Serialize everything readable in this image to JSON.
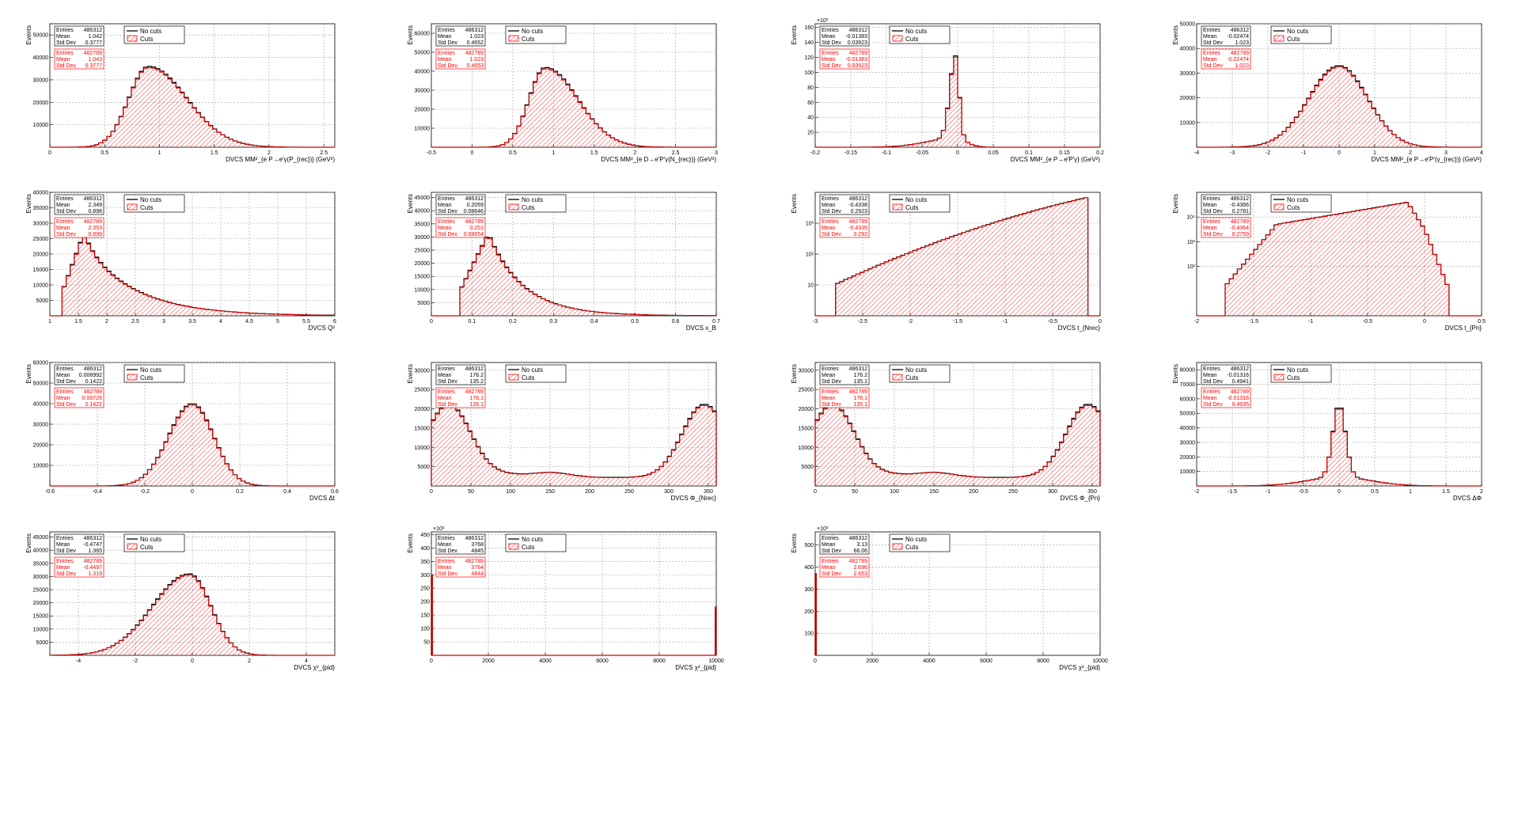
{
  "legend": {
    "nocuts": "No cuts",
    "cuts": "Cuts"
  },
  "stat_labels": [
    "Entries",
    "Mean",
    "Std Dev"
  ],
  "colors": {
    "nocuts": "#000000",
    "cuts": "#ff0000",
    "grid": "#a0a0a0"
  },
  "chart_data": [
    {
      "type": "histogram",
      "xlabel": "DVCS MM²_{e P→e′γ(P_{rec})} (GeV²)",
      "ylabel": "Events",
      "xlim": [
        0,
        2.6
      ],
      "ylim": [
        0,
        55000
      ],
      "log": false,
      "xticks": [
        "0",
        "0.5",
        "1",
        "1.5",
        "2",
        "2.5"
      ],
      "yticks": [
        "10000",
        "20000",
        "30000",
        "40000",
        "50000"
      ],
      "stats_nocuts": {
        "entries": "486312",
        "mean": "1.042",
        "std": "0.3777"
      },
      "stats_cuts": {
        "entries": "482789",
        "mean": "1.043",
        "std": "0.3777"
      },
      "shape": {
        "kind": "skew",
        "mu": 0.9,
        "sigL": 0.18,
        "sigR": 0.35,
        "peak": 36000,
        "base": 0
      }
    },
    {
      "type": "histogram",
      "xlabel": "DVCS MM²_{e D→e′P′γ(N_{rec})} (GeV²)",
      "ylabel": "Events",
      "xlim": [
        -0.5,
        3
      ],
      "ylim": [
        0,
        65000
      ],
      "log": false,
      "xticks": [
        "-0.5",
        "0",
        "0.5",
        "1",
        "1.5",
        "2",
        "2.5",
        "3"
      ],
      "yticks": [
        "10000",
        "20000",
        "30000",
        "40000",
        "50000",
        "60000"
      ],
      "stats_nocuts": {
        "entries": "486312",
        "mean": "1.023",
        "std": "0.4652"
      },
      "stats_cuts": {
        "entries": "482789",
        "mean": "1.023",
        "std": "0.4653"
      },
      "shape": {
        "kind": "skew",
        "mu": 0.9,
        "sigL": 0.2,
        "sigR": 0.4,
        "peak": 42000,
        "base": 0
      }
    },
    {
      "type": "histogram",
      "xlabel": "DVCS MM²_{e P→e′P′γ} (GeV²)",
      "ylabel": "Events",
      "xlim": [
        -0.2,
        0.2
      ],
      "ylim": [
        0,
        165000
      ],
      "log": false,
      "yexp": "×10³",
      "xticks": [
        "-0.2",
        "-0.15",
        "-0.1",
        "-0.05",
        "0",
        "0.05",
        "0.1",
        "0.15",
        "0.2"
      ],
      "yticks": [
        "20",
        "40",
        "60",
        "80",
        "100",
        "120",
        "140",
        "160"
      ],
      "stats_nocuts": {
        "entries": "486312",
        "mean": "-0.01383",
        "std": "0.03923"
      },
      "stats_cuts": {
        "entries": "482789",
        "mean": "-0.01383",
        "std": "0.03923"
      },
      "shape": {
        "kind": "sharp",
        "mu": -0.003,
        "sigL": 0.008,
        "sigR": 0.005,
        "peak": 110000,
        "base": 0,
        "tailAmp": 12000,
        "tailSigL": 0.04,
        "tailSigR": 0.015
      }
    },
    {
      "type": "histogram",
      "xlabel": "DVCS MM²_{e P→e′P′(γ_{rec})} (GeV²)",
      "ylabel": "Events",
      "xlim": [
        -4,
        4
      ],
      "ylim": [
        0,
        50000
      ],
      "log": false,
      "xticks": [
        "-4",
        "-3",
        "-2",
        "-1",
        "0",
        "1",
        "2",
        "3",
        "4"
      ],
      "yticks": [
        "10000",
        "20000",
        "30000",
        "40000",
        "50000"
      ],
      "stats_nocuts": {
        "entries": "486312",
        "mean": "-0.02474",
        "std": "1.023"
      },
      "stats_cuts": {
        "entries": "482789",
        "mean": "-0.02474",
        "std": "1.023"
      },
      "shape": {
        "kind": "skew",
        "mu": 0.0,
        "sigL": 0.85,
        "sigR": 0.8,
        "peak": 33000,
        "base": 0
      }
    },
    {
      "type": "histogram",
      "xlabel": "DVCS Q²",
      "ylabel": "Events",
      "xlim": [
        1,
        6
      ],
      "ylim": [
        0,
        40000
      ],
      "log": false,
      "xticks": [
        "1",
        "1.5",
        "2",
        "2.5",
        "3",
        "3.5",
        "4",
        "4.5",
        "5",
        "5.5",
        "6"
      ],
      "yticks": [
        "5000",
        "10000",
        "15000",
        "20000",
        "25000",
        "30000",
        "35000",
        "40000"
      ],
      "stats_nocuts": {
        "entries": "486312",
        "mean": "2.349",
        "std": "0.898"
      },
      "stats_cuts": {
        "entries": "482789",
        "mean": "2.353",
        "std": "0.899"
      },
      "shape": {
        "kind": "onset",
        "start": 1.25,
        "mu": 1.6,
        "sigR": 0.9,
        "peak": 27000
      }
    },
    {
      "type": "histogram",
      "xlabel": "DVCS x_B",
      "ylabel": "Events",
      "xlim": [
        0,
        0.7
      ],
      "ylim": [
        0,
        47000
      ],
      "log": false,
      "xticks": [
        "0",
        "0.1",
        "0.2",
        "0.3",
        "0.4",
        "0.5",
        "0.6",
        "0.7"
      ],
      "yticks": [
        "5000",
        "10000",
        "15000",
        "20000",
        "25000",
        "30000",
        "35000",
        "40000",
        "45000"
      ],
      "stats_nocuts": {
        "entries": "486312",
        "mean": "0.2059",
        "std": "0.08646"
      },
      "stats_cuts": {
        "entries": "482789",
        "mean": "0.201",
        "std": "0.08654"
      },
      "shape": {
        "kind": "onset",
        "start": 0.075,
        "mu": 0.14,
        "sigR": 0.09,
        "peak": 31500
      }
    },
    {
      "type": "histogram",
      "xlabel": "DVCS t_{Nrec}",
      "ylabel": "Events",
      "xlim": [
        -3,
        0
      ],
      "ylim": [
        1,
        10000
      ],
      "log": true,
      "xticks": [
        "-3",
        "-2.5",
        "-2",
        "-1.5",
        "-1",
        "-0.5",
        "0"
      ],
      "yticks": [
        "10",
        "10²",
        "10³"
      ],
      "ytickvals": [
        10,
        100,
        1000
      ],
      "stats_nocuts": {
        "entries": "486312",
        "mean": "-0.4338",
        "std": "0.2923"
      },
      "stats_cuts": {
        "entries": "482789",
        "mean": "-0.4335",
        "std": "0.292"
      },
      "shape": {
        "kind": "expo",
        "start": -2.8,
        "end": -0.12,
        "ystart": 10,
        "yend": 7000
      }
    },
    {
      "type": "histogram",
      "xlabel": "DVCS t_{Pn}",
      "ylabel": "Events",
      "xlim": [
        -2,
        0.5
      ],
      "ylim": [
        1,
        100000
      ],
      "log": true,
      "xticks": [
        "-2",
        "-1.5",
        "-1",
        "-0.5",
        "0",
        "0.5"
      ],
      "yticks": [
        "10²",
        "10³",
        "10⁴"
      ],
      "ytickvals": [
        100,
        1000,
        10000
      ],
      "stats_nocuts": {
        "entries": "486312",
        "mean": "-0.4366",
        "std": "0.2781"
      },
      "stats_cuts": {
        "entries": "482789",
        "mean": "-0.4364",
        "std": "0.2759"
      },
      "shape": {
        "kind": "tpn"
      }
    },
    {
      "type": "histogram",
      "xlabel": "DVCS Δt",
      "ylabel": "Events",
      "xlim": [
        -0.6,
        0.6
      ],
      "ylim": [
        0,
        60000
      ],
      "log": false,
      "xticks": [
        "-0.6",
        "-0.4",
        "-0.2",
        "0",
        "0.2",
        "0.4",
        "0.6"
      ],
      "yticks": [
        "10000",
        "20000",
        "30000",
        "40000",
        "50000",
        "60000"
      ],
      "stats_nocuts": {
        "entries": "486312",
        "mean": "0.008992",
        "std": "0.1422"
      },
      "stats_cuts": {
        "entries": "482789",
        "mean": "0.00726",
        "std": "0.1422"
      },
      "shape": {
        "kind": "skew",
        "mu": 0.0,
        "sigL": 0.1,
        "sigR": 0.09,
        "peak": 40000,
        "base": 0
      }
    },
    {
      "type": "histogram",
      "xlabel": "DVCS Φ_{Nrec}",
      "ylabel": "Events",
      "xlim": [
        0,
        360
      ],
      "ylim": [
        0,
        32000
      ],
      "log": false,
      "xticks": [
        "0",
        "50",
        "100",
        "150",
        "200",
        "250",
        "300",
        "350"
      ],
      "yticks": [
        "5000",
        "10000",
        "15000",
        "20000",
        "25000",
        "30000"
      ],
      "stats_nocuts": {
        "entries": "486312",
        "mean": "176.2",
        "std": "135.2"
      },
      "stats_cuts": {
        "entries": "482789",
        "mean": "176.1",
        "std": "135.1"
      },
      "shape": {
        "kind": "phi"
      }
    },
    {
      "type": "histogram",
      "xlabel": "DVCS Φ_{Pn}",
      "ylabel": "Events",
      "xlim": [
        0,
        360
      ],
      "ylim": [
        0,
        32000
      ],
      "log": false,
      "xticks": [
        "0",
        "50",
        "100",
        "150",
        "200",
        "250",
        "300",
        "350"
      ],
      "yticks": [
        "5000",
        "10000",
        "15000",
        "20000",
        "25000",
        "30000"
      ],
      "stats_nocuts": {
        "entries": "486312",
        "mean": "176.2",
        "std": "135.1"
      },
      "stats_cuts": {
        "entries": "482789",
        "mean": "176.1",
        "std": "135.1"
      },
      "shape": {
        "kind": "phi"
      }
    },
    {
      "type": "histogram",
      "xlabel": "DVCS ΔΦ",
      "ylabel": "Events",
      "xlim": [
        -2,
        2
      ],
      "ylim": [
        0,
        85000
      ],
      "log": false,
      "xticks": [
        "-2",
        "-1.5",
        "-1",
        "-0.5",
        "0",
        "0.5",
        "1",
        "1.5",
        "2"
      ],
      "yticks": [
        "10000",
        "20000",
        "30000",
        "40000",
        "50000",
        "60000",
        "70000",
        "80000"
      ],
      "stats_nocuts": {
        "entries": "486312",
        "mean": "-0.01316",
        "std": "0.4941"
      },
      "stats_cuts": {
        "entries": "482789",
        "mean": "-0.01316",
        "std": "0.4935"
      },
      "shape": {
        "kind": "sharp",
        "mu": 0.0,
        "sigL": 0.09,
        "sigR": 0.09,
        "peak": 50000,
        "base": 0,
        "tailAmp": 6000,
        "tailSigL": 0.45,
        "tailSigR": 0.45
      }
    },
    {
      "type": "histogram",
      "xlabel": "DVCS χ²_{pid}",
      "ylabel": "Events",
      "xlim": [
        -5,
        5
      ],
      "ylim": [
        0,
        47000
      ],
      "log": false,
      "xticks": [
        "-4",
        "-2",
        "0",
        "2",
        "4"
      ],
      "yticks": [
        "5000",
        "10000",
        "15000",
        "20000",
        "25000",
        "30000",
        "35000",
        "40000",
        "45000"
      ],
      "stats_nocuts": {
        "entries": "486312",
        "mean": "-0.4747",
        "std": "1.365"
      },
      "stats_cuts": {
        "entries": "482789",
        "mean": "-0.4497",
        "std": "1.319"
      },
      "shape": {
        "kind": "skew",
        "mu": -0.1,
        "sigL": 1.3,
        "sigR": 0.75,
        "peak": 31000,
        "base": 0
      }
    },
    {
      "type": "histogram",
      "xlabel": "DVCS χ²_{pid}",
      "ylabel": "Events",
      "xlim": [
        0,
        10000
      ],
      "ylim": [
        0,
        460000
      ],
      "log": false,
      "yexp": "×10³",
      "xticks": [
        "0",
        "2000",
        "4000",
        "6000",
        "8000",
        "10000"
      ],
      "yticks": [
        "50",
        "100",
        "150",
        "200",
        "250",
        "300",
        "350",
        "400",
        "450"
      ],
      "stats_nocuts": {
        "entries": "486312",
        "mean": "3768",
        "std": "4845"
      },
      "stats_cuts": {
        "entries": "482789",
        "mean": "3764",
        "std": "4844"
      },
      "shape": {
        "kind": "edges",
        "left": 300000,
        "right": 180000
      }
    },
    {
      "type": "histogram",
      "xlabel": "DVCS χ²_{pid}",
      "ylabel": "Events",
      "xlim": [
        0,
        10000
      ],
      "ylim": [
        0,
        560000
      ],
      "log": false,
      "yexp": "×10³",
      "xticks": [
        "0",
        "2000",
        "4000",
        "6000",
        "8000",
        "10000"
      ],
      "yticks": [
        "100",
        "200",
        "300",
        "400",
        "500"
      ],
      "stats_nocuts": {
        "entries": "486312",
        "mean": "3.13",
        "std": "66.06"
      },
      "stats_cuts": {
        "entries": "482789",
        "mean": "2.696",
        "std": "2.653"
      },
      "shape": {
        "kind": "edges",
        "left": 370000,
        "right": 0
      }
    }
  ]
}
